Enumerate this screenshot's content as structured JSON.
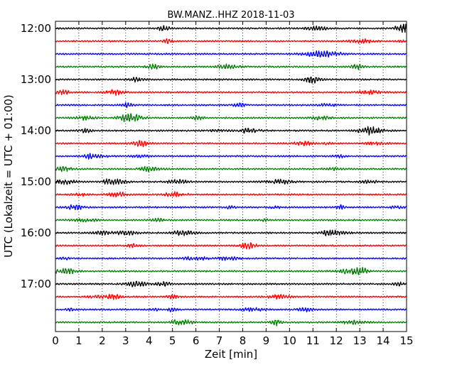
{
  "chart_data": {
    "type": "line",
    "title": "BW.MANZ..HHZ 2018-11-03",
    "xlabel": "Zeit  [min]",
    "ylabel": "UTC (Lokalzeit = UTC + 01:00)",
    "xlim": [
      0,
      15
    ],
    "x_ticks": [
      0,
      1,
      2,
      3,
      4,
      5,
      6,
      7,
      8,
      9,
      10,
      11,
      12,
      13,
      14,
      15
    ],
    "x_tick_labels": [
      "0",
      "1",
      "2",
      "3",
      "4",
      "5",
      "6",
      "7",
      "8",
      "9",
      "10",
      "11",
      "12",
      "13",
      "14",
      "15"
    ],
    "y_tick_labels": [
      "12:00",
      "13:00",
      "14:00",
      "15:00",
      "16:00",
      "17:00"
    ],
    "grid": "vertical dotted",
    "trace_count": 24,
    "trace_interval_minutes": 15,
    "trace_color_cycle": [
      "#000000",
      "#ff0000",
      "#0000ff",
      "#008000"
    ]
  }
}
